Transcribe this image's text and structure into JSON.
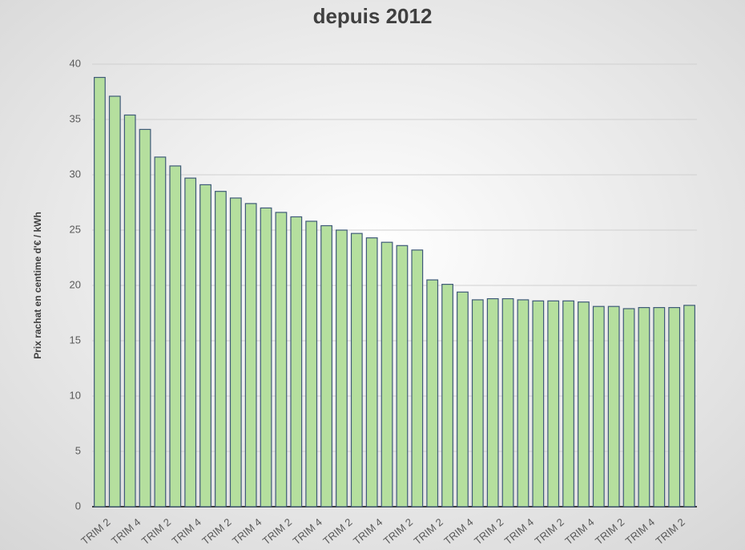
{
  "chart_data": {
    "type": "bar",
    "title": "depuis 2012",
    "y_label": "Prix rachat en centime d'€ / kWh",
    "categories": [
      "TRIM 2",
      null,
      "TRIM 4",
      null,
      "TRIM 2",
      null,
      "TRIM 4",
      null,
      "TRIM 2",
      null,
      "TRIM 4",
      null,
      "TRIM 2",
      null,
      "TRIM 4",
      null,
      "TRIM 2",
      null,
      "TRIM 4",
      null,
      "TRIM 2",
      null,
      "TRIM 2",
      null,
      "TRIM 4",
      null,
      "TRIM 2",
      null,
      "TRIM 4",
      null,
      "TRIM 2",
      null,
      "TRIM 4",
      null,
      "TRIM 2",
      null,
      "TRIM 4",
      null,
      "TRIM 2",
      null
    ],
    "values": [
      38.8,
      37.1,
      35.4,
      34.1,
      31.6,
      30.8,
      29.7,
      29.1,
      28.5,
      27.9,
      27.4,
      27.0,
      26.6,
      26.2,
      25.8,
      25.4,
      25.0,
      24.7,
      24.3,
      23.9,
      23.6,
      23.2,
      20.5,
      20.1,
      19.4,
      18.7,
      18.8,
      18.8,
      18.7,
      18.6,
      18.6,
      18.6,
      18.5,
      18.1,
      18.1,
      17.9,
      18.0,
      18.0,
      18.0,
      18.2
    ],
    "color": "#b5df9e",
    "ylim": [
      0,
      40
    ],
    "yticks": [
      0,
      5,
      10,
      15,
      20,
      25,
      30,
      35,
      40
    ],
    "grid": true
  }
}
